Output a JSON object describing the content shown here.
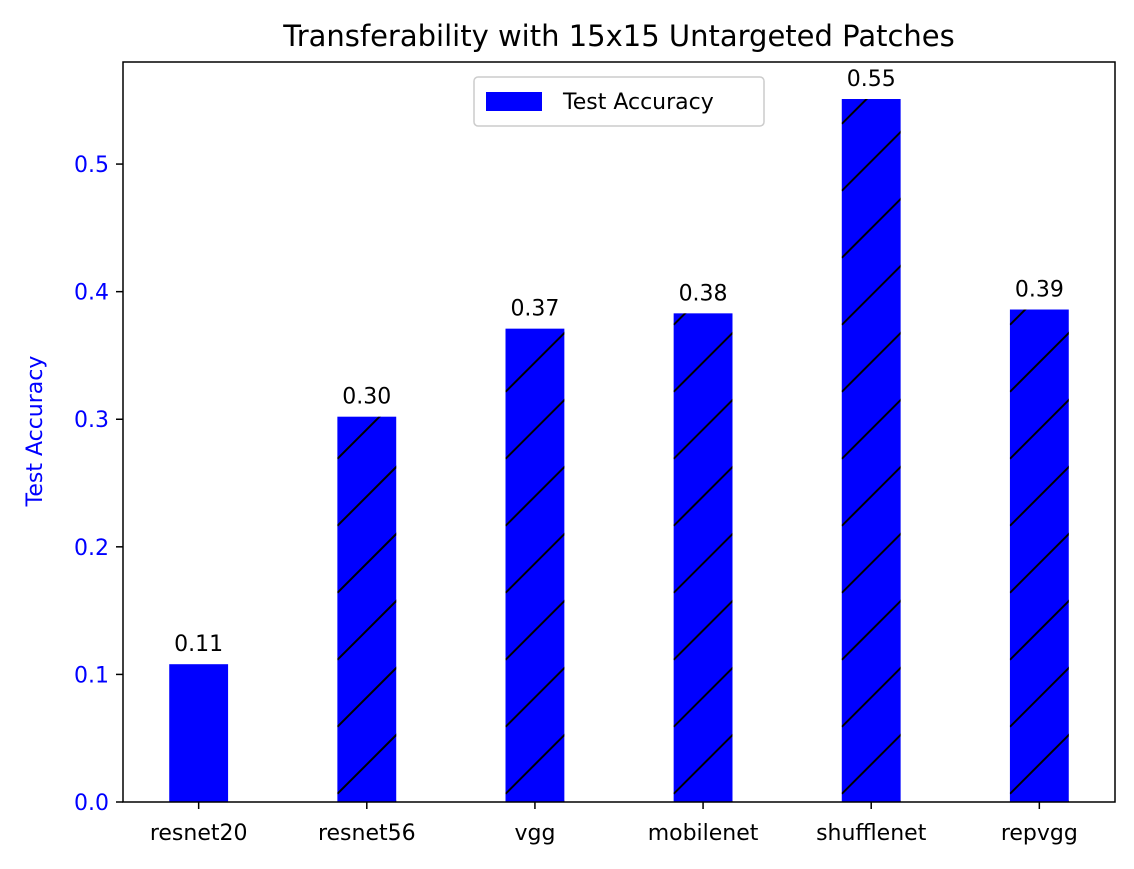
{
  "chart_data": {
    "type": "bar",
    "title": "Transferability with 15x15 Untargeted Patches",
    "xlabel": "",
    "ylabel": "Test Accuracy",
    "categories": [
      "resnet20",
      "resnet56",
      "vgg",
      "mobilenet",
      "shufflenet",
      "repvgg"
    ],
    "series": [
      {
        "name": "Test Accuracy",
        "values": [
          0.108,
          0.302,
          0.371,
          0.383,
          0.551,
          0.386
        ],
        "value_labels": [
          "0.11",
          "0.30",
          "0.37",
          "0.38",
          "0.55",
          "0.39"
        ],
        "hatched": [
          false,
          true,
          true,
          true,
          true,
          true
        ]
      }
    ],
    "ylim": [
      0,
      0.58
    ],
    "yticks": [
      0.0,
      0.1,
      0.2,
      0.3,
      0.4,
      0.5
    ],
    "ytick_labels": [
      "0.0",
      "0.1",
      "0.2",
      "0.3",
      "0.4",
      "0.5"
    ],
    "grid": false,
    "legend_position": "top-center",
    "colors": {
      "bar": "#0000ff",
      "hatch": "#000000",
      "y_axis": "#0000ff"
    }
  }
}
